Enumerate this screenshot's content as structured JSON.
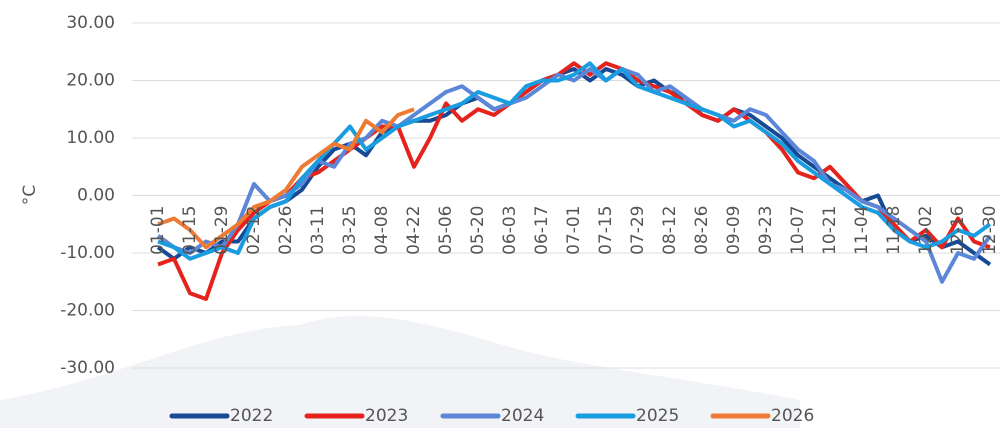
{
  "chart_data": {
    "type": "line",
    "y_label": "°C",
    "categories": [
      "01-01",
      null,
      "01-15",
      null,
      "01-29",
      null,
      "02-12",
      null,
      "02-26",
      null,
      "03-11",
      null,
      "03-25",
      null,
      "04-08",
      null,
      "04-22",
      null,
      "05-06",
      null,
      "05-20",
      null,
      "06-03",
      null,
      "06-17",
      null,
      "07-01",
      null,
      "07-15",
      null,
      "07-29",
      null,
      "08-12",
      null,
      "08-26",
      null,
      "09-09",
      null,
      "09-23",
      null,
      "10-07",
      null,
      "10-21",
      null,
      "11-04",
      null,
      "11-18",
      null,
      "12-02",
      null,
      "12-16",
      null,
      "12-30"
    ],
    "ylim": [
      -30,
      30
    ],
    "yticks": [
      {
        "value": -30,
        "label": "-30.00"
      },
      {
        "value": -20,
        "label": "-20.00"
      },
      {
        "value": -10,
        "label": "-10.00"
      },
      {
        "value": 0,
        "label": "0.00"
      },
      {
        "value": 10,
        "label": "10.00"
      },
      {
        "value": 20,
        "label": "20.00"
      },
      {
        "value": 30,
        "label": "30.00"
      }
    ],
    "grid": true,
    "legend": "bottom",
    "series": [
      {
        "name": "2022",
        "color": "#174a94",
        "values": [
          -9,
          -11,
          -9,
          -10,
          -8,
          -8,
          -4,
          -2,
          -1,
          1,
          5,
          8,
          9,
          7,
          11,
          12,
          13,
          13,
          14,
          16,
          17,
          15,
          16,
          18,
          20,
          21,
          22,
          20,
          22,
          21,
          19,
          20,
          18,
          17,
          14,
          13,
          15,
          14,
          12,
          10,
          7,
          5,
          3,
          1,
          -1,
          0,
          -6,
          -8,
          -7,
          -9,
          -8,
          -10,
          -12
        ]
      },
      {
        "name": "2023",
        "color": "#e5221c",
        "values": [
          -12,
          -11,
          -17,
          -18,
          -10,
          -6,
          -3,
          -1,
          0,
          3,
          4,
          6,
          8,
          10,
          12,
          12,
          5,
          10,
          16,
          13,
          15,
          14,
          16,
          18,
          20,
          21,
          23,
          21,
          23,
          22,
          20,
          19,
          18,
          16,
          14,
          13,
          15,
          13,
          11,
          8,
          4,
          3,
          5,
          2,
          -1,
          -2,
          -5,
          -8,
          -6,
          -9,
          -4,
          -8,
          -9
        ]
      },
      {
        "name": "2024",
        "color": "#5c87d8",
        "values": [
          -7,
          -9,
          -10,
          -8,
          -9,
          -5,
          2,
          -1,
          0,
          2,
          6,
          5,
          9,
          10,
          13,
          12,
          14,
          16,
          18,
          19,
          17,
          15,
          16,
          17,
          19,
          21,
          20,
          22,
          20,
          22,
          21,
          18,
          19,
          17,
          15,
          14,
          13,
          15,
          14,
          11,
          8,
          6,
          2,
          1,
          -1,
          -2,
          -4,
          -6,
          -8,
          -15,
          -10,
          -11,
          -7
        ]
      },
      {
        "name": "2025",
        "color": "#1a9de0",
        "values": [
          -8,
          -9,
          -11,
          -10,
          -9,
          -10,
          -4,
          -2,
          -1,
          3,
          6,
          9,
          12,
          8,
          10,
          12,
          13,
          14,
          15,
          16,
          18,
          17,
          16,
          19,
          20,
          20,
          21,
          23,
          20,
          22,
          19,
          18,
          17,
          16,
          15,
          14,
          12,
          13,
          11,
          9,
          6,
          4,
          2,
          0,
          -2,
          -3,
          -6,
          -8,
          -9,
          -8,
          -6,
          -7,
          -5
        ]
      },
      {
        "name": "2026",
        "color": "#ee7b33",
        "values": [
          -5,
          -4,
          -6,
          -9,
          -7,
          -5,
          -2,
          -1,
          1,
          5,
          7,
          9,
          8,
          13,
          11,
          14,
          15,
          null,
          null,
          null,
          null,
          null,
          null,
          null,
          null,
          null,
          null,
          null,
          null,
          null,
          null,
          null,
          null,
          null,
          null,
          null,
          null,
          null,
          null,
          null,
          null,
          null,
          null,
          null,
          null,
          null,
          null,
          null,
          null,
          null,
          null,
          null,
          null
        ]
      }
    ]
  }
}
